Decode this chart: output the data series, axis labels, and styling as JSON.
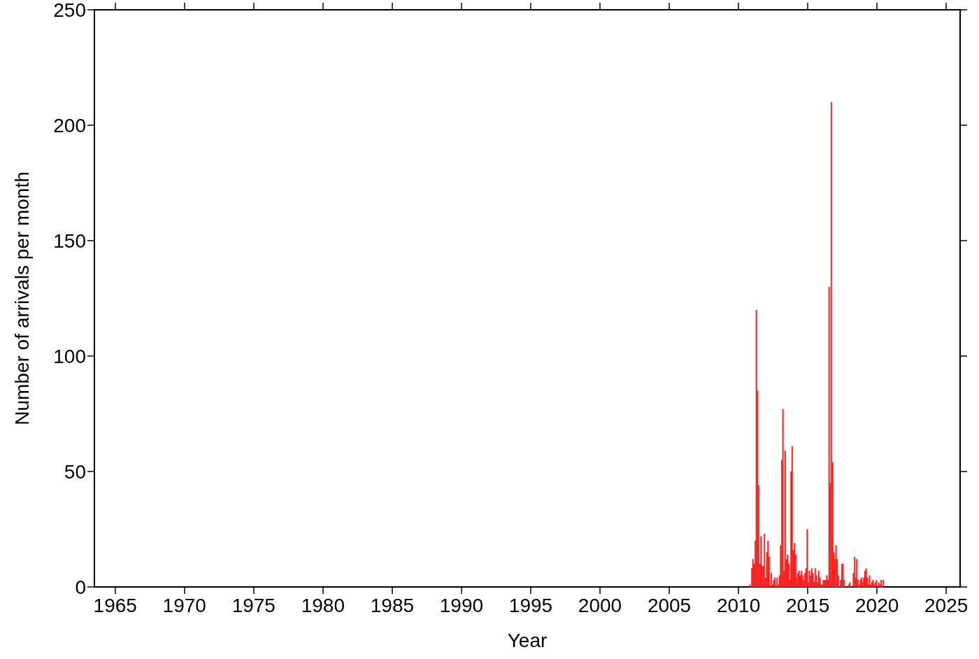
{
  "chart_data": {
    "type": "histogram",
    "xlabel": "Year",
    "ylabel": "Number of arrivals per month",
    "color": "#ff1a1a",
    "bins": [
      2010.75,
      2010.833,
      2010.917,
      2011,
      2011.083,
      2011.167,
      2011.25,
      2011.333,
      2011.417,
      2011.5,
      2011.583,
      2011.667,
      2011.75,
      2011.833,
      2011.917,
      2012,
      2012.083,
      2012.167,
      2012.25,
      2012.333,
      2012.417,
      2012.5,
      2012.583,
      2012.667,
      2012.75,
      2012.833,
      2012.917,
      2013,
      2013.083,
      2013.167,
      2013.25,
      2013.333,
      2013.417,
      2013.5,
      2013.583,
      2013.667,
      2013.75,
      2013.833,
      2013.917,
      2014,
      2014.083,
      2014.167,
      2014.25,
      2014.333,
      2014.417,
      2014.5,
      2014.583,
      2014.667,
      2014.75,
      2014.833,
      2014.917,
      2015,
      2015.083,
      2015.167,
      2015.25,
      2015.333,
      2015.417,
      2015.5,
      2015.583,
      2015.667,
      2015.75,
      2015.833,
      2015.917,
      2016,
      2016.083,
      2016.167,
      2016.25,
      2016.333,
      2016.417,
      2016.5,
      2016.583,
      2016.667,
      2016.75,
      2016.833,
      2016.917,
      2017,
      2017.083,
      2017.167,
      2017.25,
      2017.333,
      2017.417,
      2017.5,
      2017.583,
      2017.667,
      2017.75,
      2017.833,
      2017.917,
      2018,
      2018.083,
      2018.167,
      2018.25,
      2018.333,
      2018.417,
      2018.5,
      2018.583,
      2018.667,
      2018.75,
      2018.833,
      2018.917,
      2019,
      2019.083,
      2019.167,
      2019.25,
      2019.333,
      2019.417,
      2019.5,
      2019.583,
      2019.667,
      2019.75,
      2019.833,
      2019.917,
      2020,
      2020.083,
      2020.167,
      2020.25,
      2020.333,
      2020.417,
      2020.5
    ],
    "values": [
      1,
      0,
      8,
      12,
      10,
      20,
      120,
      85,
      44,
      10,
      22,
      9,
      9,
      23,
      4,
      15,
      20,
      13,
      0,
      6,
      1,
      3,
      4,
      0,
      4,
      1,
      5,
      18,
      55,
      77,
      7,
      59,
      12,
      14,
      10,
      3,
      50,
      61,
      16,
      19,
      14,
      4,
      6,
      7,
      5,
      7,
      5,
      3,
      6,
      8,
      25,
      2,
      7,
      5,
      8,
      6,
      2,
      8,
      5,
      2,
      7,
      4,
      1,
      1,
      3,
      3,
      3,
      5,
      3,
      130,
      45,
      210,
      54,
      15,
      12,
      18,
      12,
      5,
      0,
      3,
      10,
      10,
      3,
      0,
      0,
      0,
      1,
      2,
      0,
      0,
      6,
      13,
      4,
      12,
      3,
      1,
      3,
      4,
      2,
      4,
      7,
      8,
      4,
      1,
      5,
      1,
      2,
      3,
      1,
      2,
      3,
      0,
      2,
      1,
      3,
      0,
      3
    ],
    "xlim": [
      1963.5,
      2026
    ],
    "xticks": [
      1965,
      1970,
      1975,
      1980,
      1985,
      1990,
      1995,
      2000,
      2005,
      2010,
      2015,
      2020,
      2025
    ],
    "ylim": [
      0,
      250
    ],
    "yticks": [
      0,
      50,
      100,
      150,
      200,
      250
    ],
    "grid": false
  }
}
